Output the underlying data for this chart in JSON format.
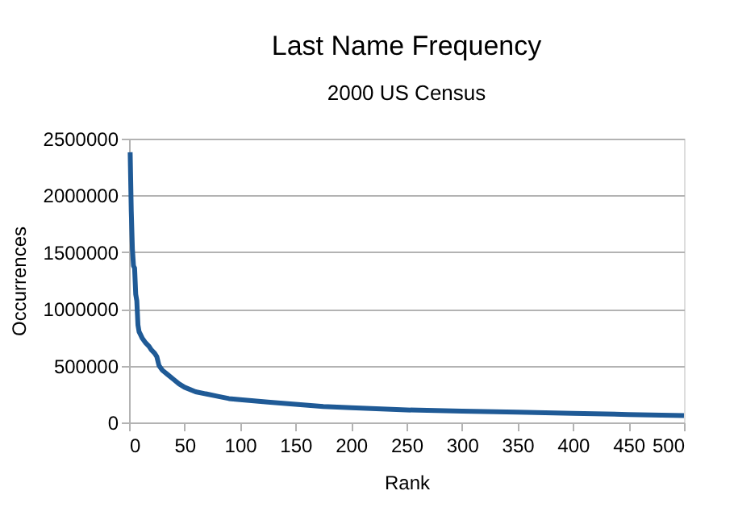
{
  "chart_data": {
    "type": "line",
    "title": "Last Name Frequency",
    "subtitle": "2000 US Census",
    "xlabel": "Rank",
    "ylabel": "Occurrences",
    "x": [
      1,
      2,
      3,
      4,
      5,
      6,
      7,
      8,
      9,
      10,
      12,
      15,
      18,
      20,
      23,
      25,
      27,
      30,
      35,
      40,
      45,
      50,
      60,
      70,
      80,
      90,
      100,
      125,
      150,
      175,
      200,
      250,
      300,
      350,
      400,
      450,
      500
    ],
    "series": [
      {
        "color": "#1f5a96",
        "values": [
          2380000,
          1860000,
          1530000,
          1380000,
          1360000,
          1130000,
          1070000,
          860000,
          800000,
          780000,
          740000,
          700000,
          670000,
          640000,
          610000,
          580000,
          500000,
          460000,
          420000,
          380000,
          340000,
          310000,
          270000,
          250000,
          230000,
          210000,
          200000,
          180000,
          160000,
          140000,
          130000,
          110000,
          100000,
          90000,
          80000,
          70000,
          60000
        ]
      }
    ],
    "xlim": [
      0,
      500
    ],
    "xticks": [
      0,
      50,
      100,
      150,
      200,
      250,
      300,
      350,
      400,
      450,
      500
    ],
    "ylim": [
      0,
      2500000
    ],
    "yticks": [
      0,
      500000,
      1000000,
      1500000,
      2000000,
      2500000
    ],
    "grid": "y",
    "marker": "none",
    "line_style": "solid"
  }
}
